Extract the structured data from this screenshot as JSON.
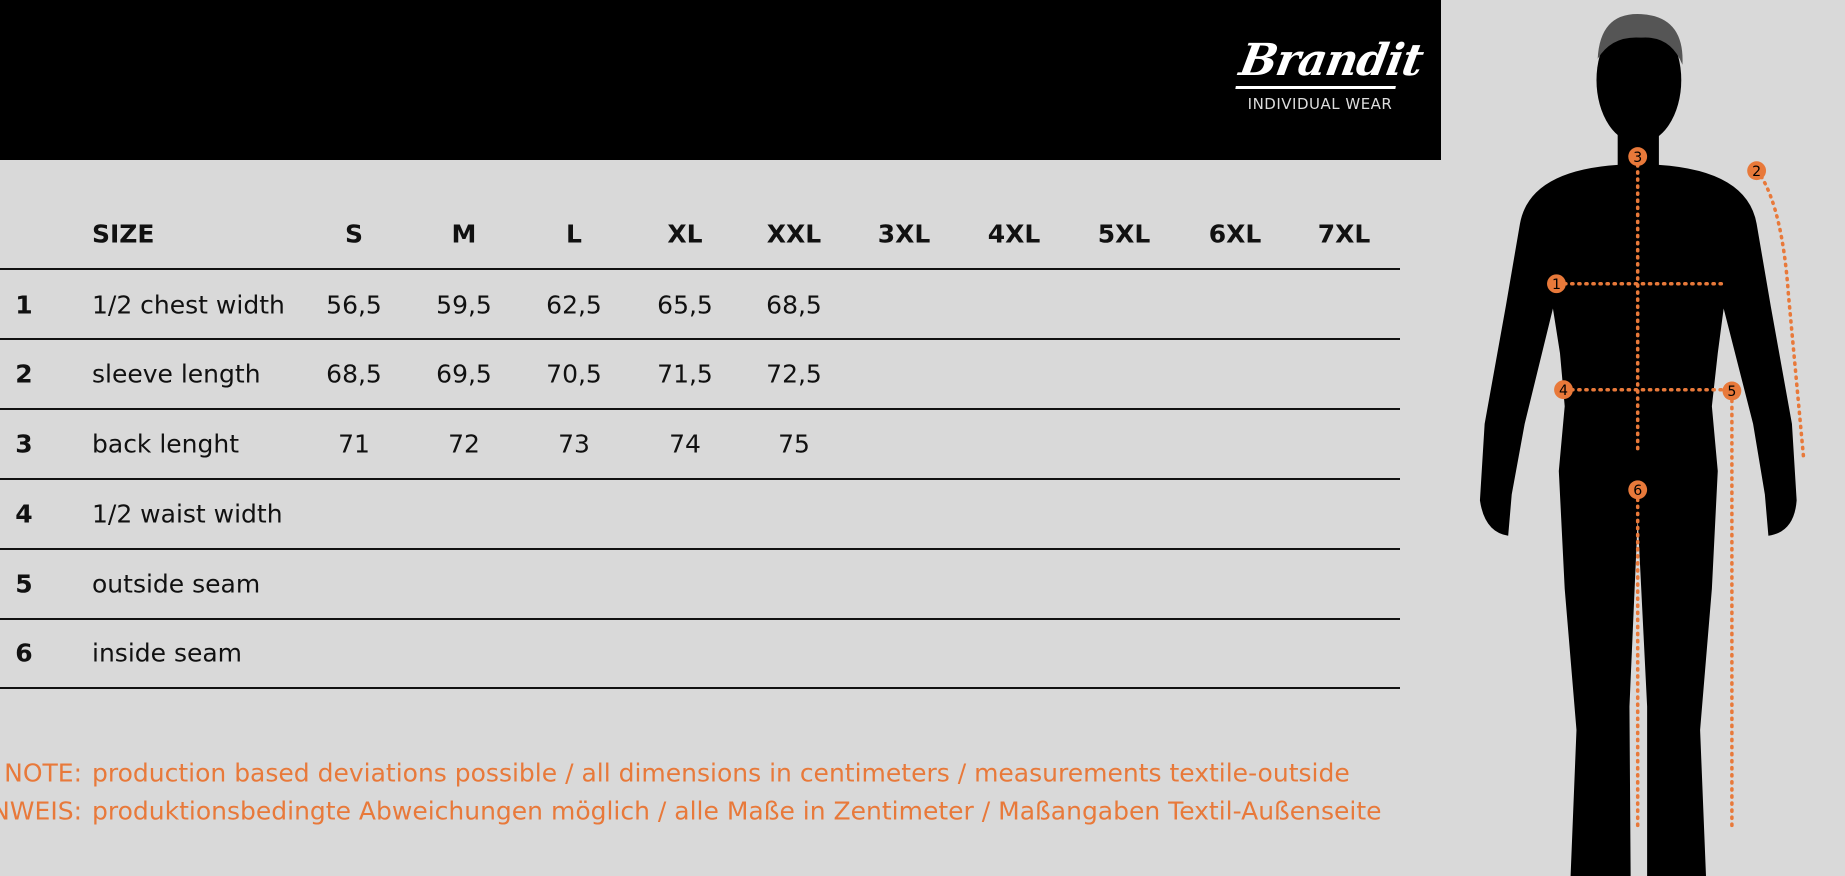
{
  "logo": {
    "brand": "Brandit",
    "tagline": "INDIVIDUAL WEAR"
  },
  "table": {
    "size_header": "SIZE",
    "sizes": [
      "S",
      "M",
      "L",
      "XL",
      "XXL",
      "3XL",
      "4XL",
      "5XL",
      "6XL",
      "7XL"
    ],
    "rows": [
      {
        "num": "1",
        "label": "1/2 chest width",
        "values": [
          "56,5",
          "59,5",
          "62,5",
          "65,5",
          "68,5"
        ]
      },
      {
        "num": "2",
        "label": "sleeve length",
        "values": [
          "68,5",
          "69,5",
          "70,5",
          "71,5",
          "72,5"
        ]
      },
      {
        "num": "3",
        "label": "back lenght",
        "values": [
          "71",
          "72",
          "73",
          "74",
          "75"
        ]
      },
      {
        "num": "4",
        "label": "1/2 waist width",
        "values": []
      },
      {
        "num": "5",
        "label": "outside seam",
        "values": []
      },
      {
        "num": "6",
        "label": "inside seam",
        "values": []
      }
    ]
  },
  "notes": [
    {
      "label": "NOTE:",
      "text": "production based deviations possible / all dimensions in centimeters / measurements textile-outside"
    },
    {
      "label": "HINWEIS:",
      "text": "produktionsbedingte Abweichungen möglich / alle Maße in Zentimeter / Maßangaben Textil-Außenseite"
    }
  ],
  "figure": {
    "markers": [
      "1",
      "2",
      "3",
      "4",
      "5",
      "6"
    ]
  },
  "colors": {
    "accent": "#e8793a",
    "background": "#d9d9d9",
    "header": "#000000"
  }
}
